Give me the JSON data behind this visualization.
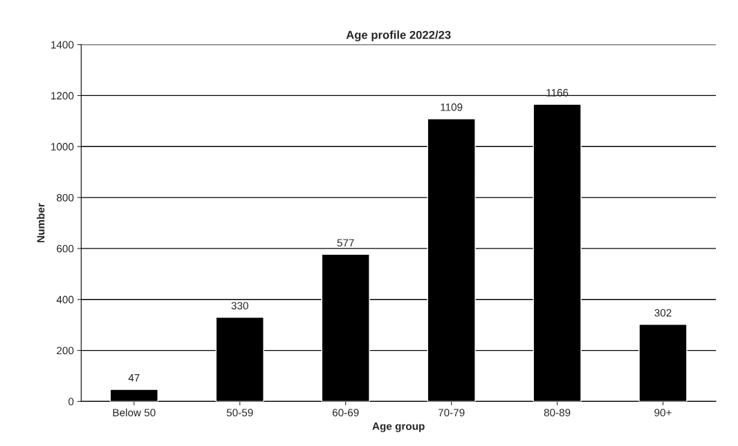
{
  "chart_data": {
    "type": "bar",
    "title": "Age profile 2022/23",
    "xlabel": "Age group",
    "ylabel": "Number",
    "categories": [
      "Below 50",
      "50-59",
      "60-69",
      "70-79",
      "80-89",
      "90+"
    ],
    "values": [
      47,
      330,
      577,
      1109,
      1166,
      302
    ],
    "color": "#000000",
    "ylim": [
      0,
      1400
    ],
    "yticks": [
      0,
      200,
      400,
      600,
      800,
      1000,
      1200,
      1400
    ],
    "grid": "y",
    "data_labels": true,
    "legend": false
  }
}
